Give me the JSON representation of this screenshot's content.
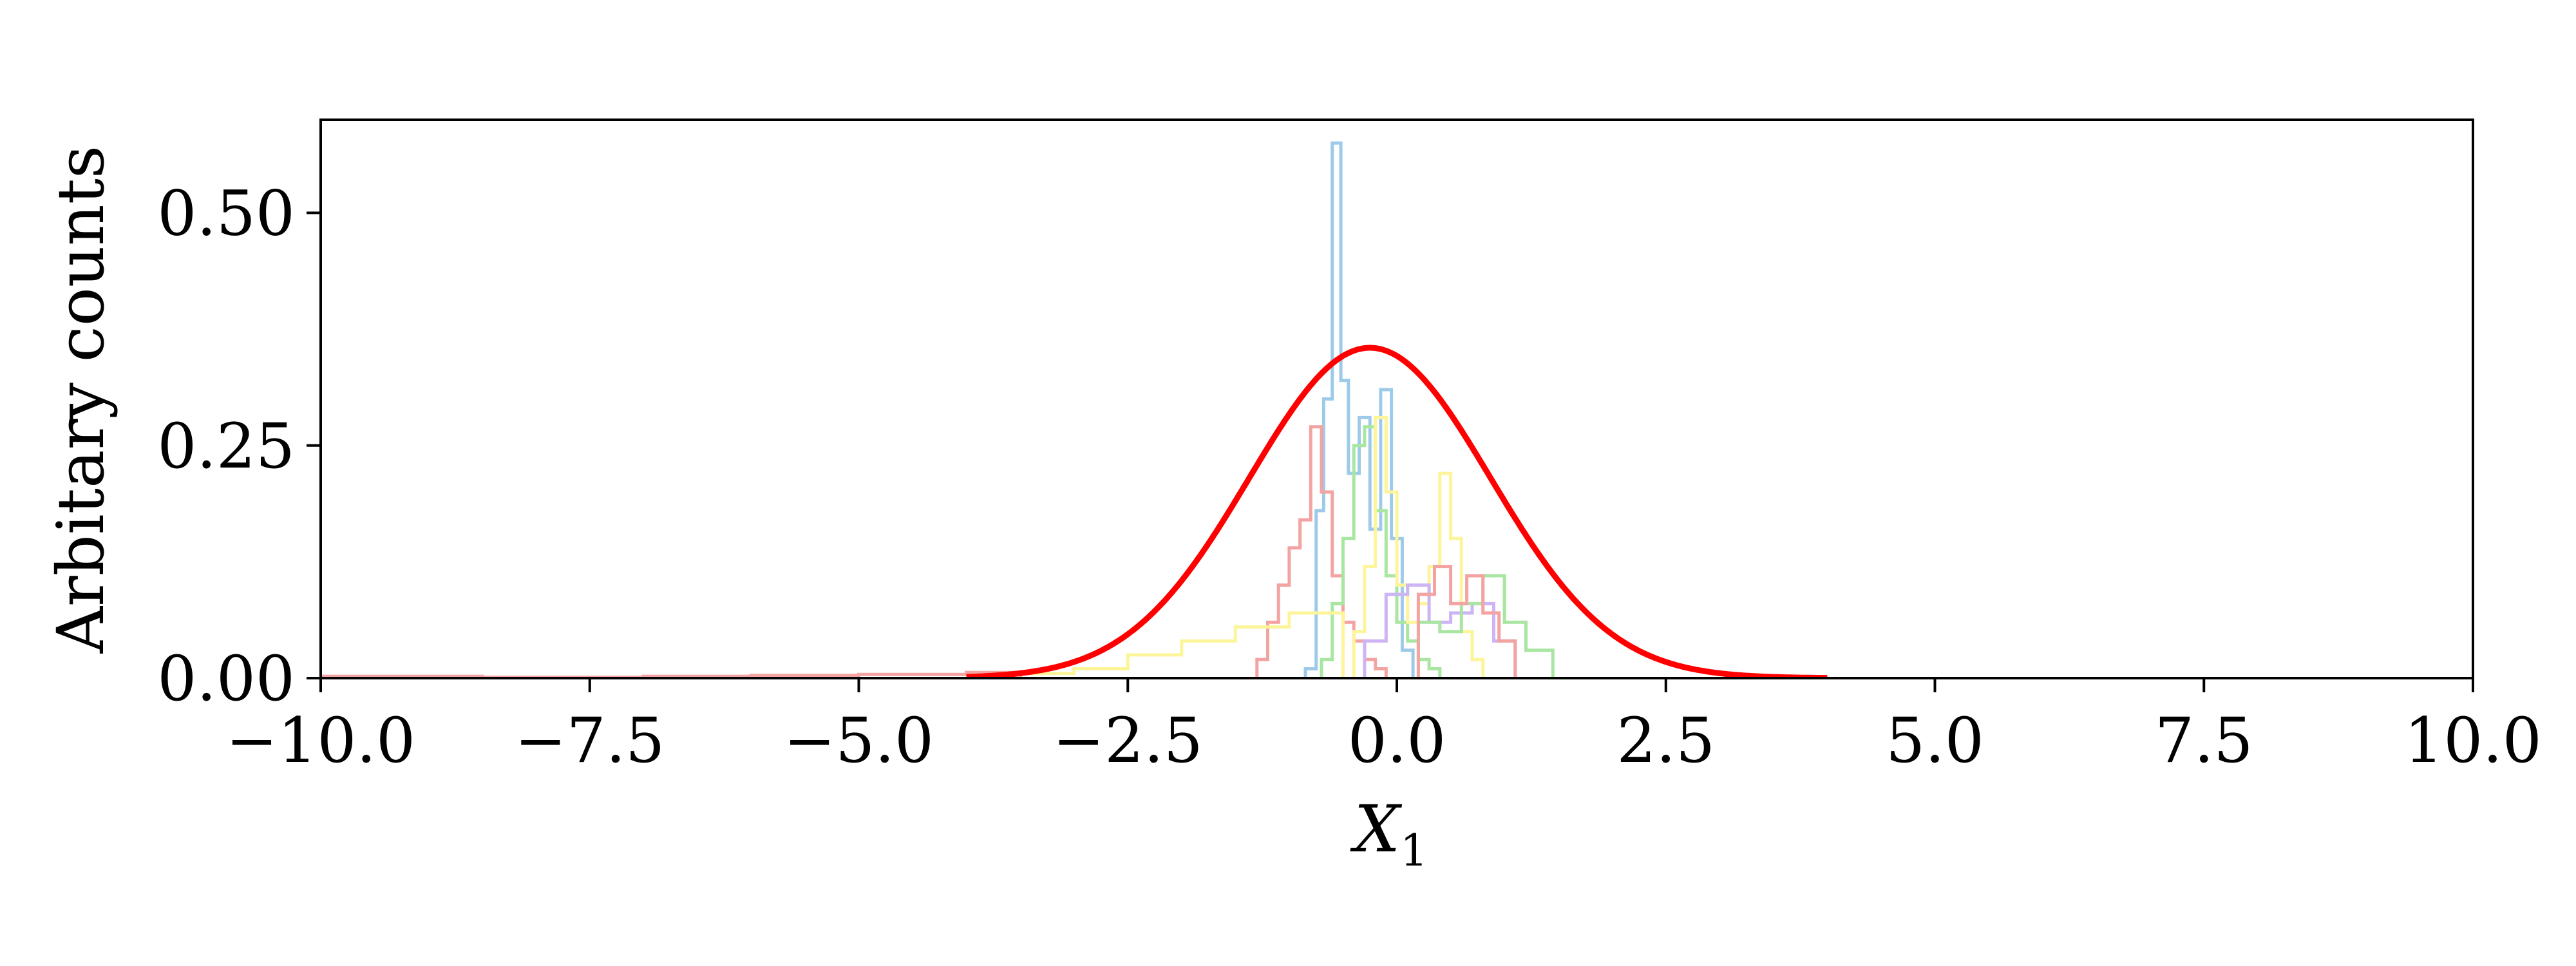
{
  "chart_data": {
    "type": "line",
    "title": "",
    "xlabel_main": "X",
    "xlabel_sub": "1",
    "ylabel": "Arbitary counts",
    "xlim": [
      -10,
      10
    ],
    "ylim": [
      0,
      0.6
    ],
    "xticks": [
      -10,
      -7.5,
      -5,
      -2.5,
      0,
      2.5,
      5,
      7.5,
      10
    ],
    "xtick_labels": [
      "−10.0",
      "−7.5",
      "−5.0",
      "−2.5",
      "0.0",
      "2.5",
      "5.0",
      "7.5",
      "10.0"
    ],
    "yticks": [
      0,
      0.25,
      0.5
    ],
    "ytick_labels": [
      "0.00",
      "0.25",
      "0.50"
    ],
    "grid": false,
    "legend": "none",
    "series": [
      {
        "kind": "gaussian",
        "color": "#ff0000",
        "mean": -0.25,
        "std": 1.12,
        "peak": 0.355,
        "x_range": [
          -4.0,
          4.0
        ]
      },
      {
        "kind": "step",
        "color": "#9ecae9",
        "x": [
          -0.85,
          -0.75,
          -0.68,
          -0.6,
          -0.52,
          -0.45,
          -0.35,
          -0.25,
          -0.15,
          -0.05,
          0.05,
          0.15
        ],
        "values": [
          0.01,
          0.18,
          0.3,
          0.575,
          0.32,
          0.22,
          0.28,
          0.16,
          0.31,
          0.15,
          0.03,
          0
        ]
      },
      {
        "kind": "step",
        "color": "#f4a3a3",
        "x": [
          -1.3,
          -1.2,
          -1.1,
          -1.0,
          -0.9,
          -0.8,
          -0.7,
          -0.6,
          -0.5,
          -0.4,
          -0.3,
          -0.2,
          -0.1
        ],
        "values": [
          0.02,
          0.06,
          0.1,
          0.14,
          0.17,
          0.27,
          0.2,
          0.11,
          0.06,
          0.04,
          0.02,
          0.01,
          0
        ]
      },
      {
        "kind": "step",
        "color": "#a8e6a1",
        "x": [
          -0.7,
          -0.6,
          -0.5,
          -0.4,
          -0.3,
          -0.2,
          -0.1,
          0.0,
          0.1,
          0.2,
          0.3,
          0.4
        ],
        "values": [
          0.02,
          0.08,
          0.15,
          0.25,
          0.27,
          0.18,
          0.11,
          0.06,
          0.04,
          0.02,
          0.01,
          0
        ]
      },
      {
        "kind": "step",
        "color": "#fcf59a",
        "x": [
          -0.4,
          -0.3,
          -0.2,
          -0.1,
          0.0,
          0.1,
          0.2,
          0.3,
          0.4,
          0.5,
          0.6,
          0.7,
          0.8
        ],
        "values": [
          0.05,
          0.12,
          0.28,
          0.2,
          0.1,
          0.06,
          0.08,
          0.12,
          0.22,
          0.15,
          0.05,
          0.02,
          0
        ]
      },
      {
        "kind": "step",
        "color": "#cdb4f4",
        "x": [
          -0.3,
          -0.1,
          0.1,
          0.3,
          0.5,
          0.7,
          0.9,
          1.1
        ],
        "values": [
          0.04,
          0.09,
          0.1,
          0.06,
          0.07,
          0.08,
          0.04,
          0
        ]
      },
      {
        "kind": "step",
        "color": "#fcf59a",
        "x": [
          -3.5,
          -3.0,
          -2.5,
          -2.0,
          -1.5,
          -1.0,
          -0.5
        ],
        "values": [
          0.005,
          0.01,
          0.025,
          0.04,
          0.055,
          0.07,
          0
        ]
      },
      {
        "kind": "step",
        "color": "#f4a3a3",
        "x": [
          -10,
          -8.5,
          -7,
          -6,
          -5,
          -4,
          -3.5
        ],
        "values": [
          0.002,
          0.001,
          0.002,
          0.003,
          0.004,
          0.006,
          0
        ]
      },
      {
        "kind": "step",
        "color": "#a8e6a1",
        "x": [
          0.2,
          0.4,
          0.6,
          0.8,
          1.0,
          1.2,
          1.45
        ],
        "values": [
          0.06,
          0.05,
          0.08,
          0.11,
          0.06,
          0.03,
          0
        ]
      },
      {
        "kind": "step",
        "color": "#f4a3a3",
        "x": [
          0.2,
          0.35,
          0.5,
          0.65,
          0.8,
          0.95,
          1.1
        ],
        "values": [
          0.09,
          0.12,
          0.08,
          0.11,
          0.07,
          0.04,
          0
        ]
      }
    ]
  }
}
